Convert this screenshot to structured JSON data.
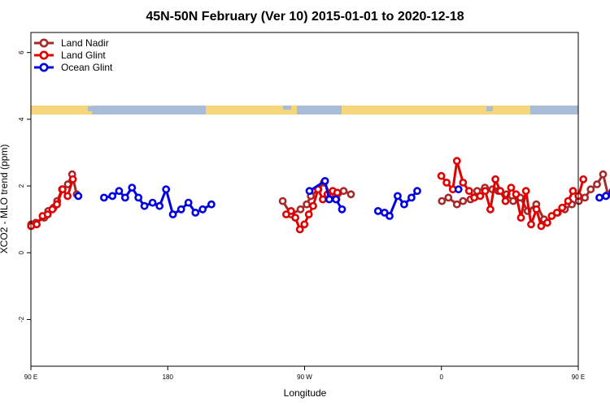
{
  "chart_data": {
    "type": "line",
    "title": "45N-50N February (Ver 10)   2015-01-01 to 2020-12-18",
    "xlabel": "Longitude",
    "ylabel": "XCO2 - MLO trend (ppm)",
    "xlim": [
      90,
      450
    ],
    "ylim": [
      -3.4,
      6.6
    ],
    "x_ticks": [
      {
        "value": 90,
        "label": "90 E"
      },
      {
        "value": 180,
        "label": "180"
      },
      {
        "value": 270,
        "label": "90 W"
      },
      {
        "value": 360,
        "label": "0"
      },
      {
        "value": 450,
        "label": "90 E"
      },
      {
        "value": 540,
        "label": "180"
      }
    ],
    "y_ticks": [
      {
        "value": -2,
        "label": "-2"
      },
      {
        "value": 0,
        "label": "0"
      },
      {
        "value": 2,
        "label": "2"
      },
      {
        "value": 4,
        "label": "4"
      },
      {
        "value": 6,
        "label": "6"
      }
    ],
    "legend_position": "top-left",
    "grid": false,
    "land_band_colors": {
      "land": "#F5D67A",
      "ocean": "#A8BCD8"
    },
    "series": [
      {
        "name": "Land Nadir",
        "color": "#A52A2A",
        "segments": [
          [
            [
              90.2,
              0.85
            ],
            [
              93.3,
              0.9
            ],
            [
              98.7,
              1.05
            ],
            [
              101.4,
              1.25
            ],
            [
              104.9,
              1.35
            ],
            [
              107.3,
              1.55
            ],
            [
              110.5,
              1.9
            ],
            [
              114.3,
              2.05
            ],
            [
              117.1,
              2.35
            ],
            [
              120.1,
              1.75
            ]
          ],
          [
            [
              255.6,
              1.55
            ],
            [
              261,
              1.15
            ],
            [
              267.3,
              1.3
            ],
            [
              271.4,
              1.45
            ],
            [
              274.1,
              1.7
            ],
            [
              279.1,
              1.9
            ],
            [
              282.7,
              2.1
            ],
            [
              286.9,
              1.75
            ],
            [
              290.9,
              1.6
            ],
            [
              295.7,
              1.85
            ],
            [
              300.5,
              1.75
            ]
          ],
          [
            [
              360.3,
              1.55
            ],
            [
              364.6,
              1.65
            ],
            [
              370.2,
              1.45
            ],
            [
              374.2,
              1.55
            ],
            [
              379.1,
              1.6
            ],
            [
              383.5,
              1.85
            ],
            [
              388.6,
              1.95
            ],
            [
              393.5,
              1.9
            ],
            [
              397.3,
              1.85
            ],
            [
              402.8,
              1.75
            ],
            [
              407.2,
              1.55
            ],
            [
              411.9,
              1.65
            ],
            [
              416.7,
              1.25
            ],
            [
              422.4,
              1.45
            ],
            [
              427.5,
              1.0
            ]
          ],
          [
            [
              436.5,
              1.2
            ],
            [
              441.2,
              1.3
            ],
            [
              445.8,
              1.45
            ],
            [
              450.3,
              1.55
            ],
            [
              454.4,
              1.65
            ],
            [
              458.2,
              1.9
            ],
            [
              462.3,
              2.05
            ],
            [
              466.3,
              2.35
            ],
            [
              469.5,
              1.75
            ]
          ]
        ]
      },
      {
        "name": "Land Glint",
        "color": "#E00000",
        "segments": [
          [
            [
              90.1,
              0.8
            ],
            [
              93.8,
              0.85
            ],
            [
              97.7,
              1.1
            ],
            [
              101,
              1.15
            ],
            [
              104.1,
              1.3
            ],
            [
              107.1,
              1.45
            ],
            [
              110.8,
              1.9
            ],
            [
              114.1,
              1.7
            ],
            [
              117.6,
              2.2
            ]
          ],
          [
            [
              257.9,
              1.15
            ],
            [
              261.1,
              1.25
            ],
            [
              263.9,
              1.05
            ],
            [
              266.9,
              0.7
            ],
            [
              269.9,
              0.85
            ],
            [
              272.8,
              1.15
            ],
            [
              275.6,
              1.4
            ],
            [
              278.8,
              1.9
            ],
            [
              282,
              1.6
            ],
            [
              285.1,
              1.75
            ],
            [
              288.5,
              1.85
            ],
            [
              291.5,
              1.8
            ]
          ],
          [
            [
              359.9,
              2.3
            ],
            [
              363.4,
              2.1
            ],
            [
              367.5,
              1.9
            ],
            [
              370.2,
              2.75
            ],
            [
              374.2,
              2.1
            ],
            [
              378.2,
              1.85
            ],
            [
              381.6,
              1.65
            ],
            [
              385.5,
              1.7
            ],
            [
              388.8,
              1.85
            ],
            [
              392.2,
              1.3
            ],
            [
              395.5,
              2.2
            ],
            [
              398.7,
              1.85
            ],
            [
              402.1,
              1.55
            ],
            [
              405.8,
              1.95
            ],
            [
              409.1,
              1.75
            ],
            [
              412.3,
              1.05
            ],
            [
              415.6,
              1.85
            ],
            [
              419,
              0.85
            ],
            [
              422.5,
              1.3
            ],
            [
              425.6,
              0.8
            ],
            [
              429.6,
              0.9
            ],
            [
              432.5,
              1.1
            ],
            [
              436,
              1.2
            ],
            [
              439.4,
              1.35
            ],
            [
              443.3,
              1.55
            ],
            [
              446.5,
              1.85
            ],
            [
              450.1,
              1.7
            ],
            [
              453.3,
              2.2
            ]
          ]
        ]
      },
      {
        "name": "Ocean Glint",
        "color": "#0000E0",
        "segments": [
          [
            [
              121.2,
              1.7
            ]
          ],
          [
            [
              138.1,
              1.65
            ],
            [
              143.6,
              1.7
            ],
            [
              148,
              1.85
            ],
            [
              152,
              1.65
            ],
            [
              156.5,
              1.95
            ],
            [
              160.7,
              1.65
            ],
            [
              164.7,
              1.4
            ],
            [
              170,
              1.5
            ],
            [
              174.6,
              1.4
            ],
            [
              178.9,
              1.9
            ],
            [
              183.4,
              1.15
            ],
            [
              188.8,
              1.3
            ],
            [
              193.6,
              1.5
            ],
            [
              198.2,
              1.2
            ],
            [
              203,
              1.3
            ],
            [
              208.7,
              1.45
            ]
          ],
          [
            [
              273.2,
              1.85
            ],
            [
              283.4,
              2.15
            ],
            [
              286.2,
              1.6
            ],
            [
              290.6,
              1.6
            ],
            [
              294.6,
              1.3
            ]
          ],
          [
            [
              318.3,
              1.25
            ],
            [
              322.6,
              1.2
            ],
            [
              325.9,
              1.1
            ],
            [
              331.2,
              1.7
            ],
            [
              335.5,
              1.45
            ],
            [
              340.3,
              1.65
            ],
            [
              344.1,
              1.85
            ]
          ],
          [
            [
              371.2,
              1.9
            ]
          ],
          [
            [
              463.9,
              1.65
            ],
            [
              468.2,
              1.7
            ],
            [
              472.8,
              1.85
            ],
            [
              477.6,
              1.65
            ],
            [
              481.4,
              1.9
            ]
          ]
        ]
      }
    ]
  }
}
